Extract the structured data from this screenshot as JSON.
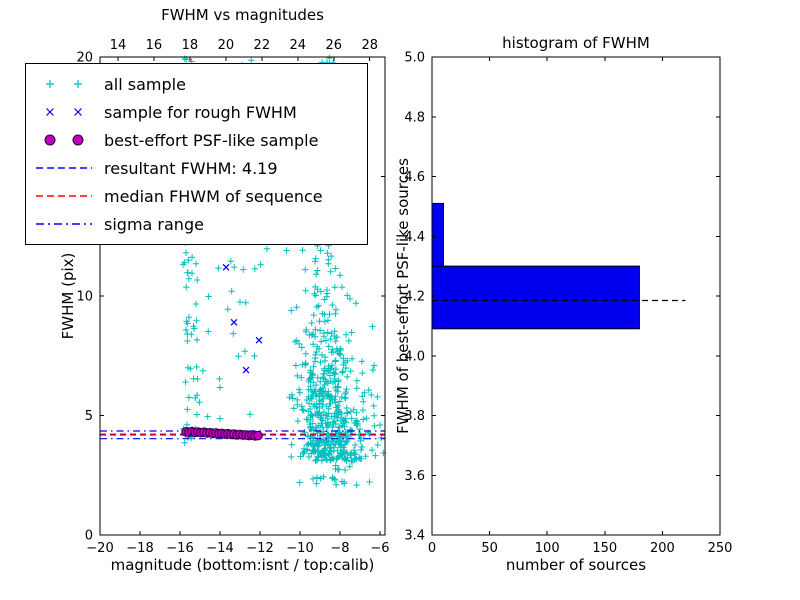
{
  "figure": {
    "background": "#ffffff"
  },
  "chart_data": [
    {
      "type": "scatter",
      "title": "FWHM vs magnitudes",
      "xlabel": "magnitude (bottom:isnt / top:calib)",
      "ylabel": "FWHM (pix)",
      "xlim": [
        -20,
        -5.75
      ],
      "ylim": [
        0,
        20
      ],
      "xticks": {
        "values": [
          -20,
          -18,
          -16,
          -14,
          -12,
          -10,
          -8,
          -6
        ],
        "labels": [
          "−20",
          "−18",
          "−16",
          "−14",
          "−12",
          "−10",
          "−8",
          "−6"
        ]
      },
      "yticks": {
        "values": [
          0,
          5,
          10,
          15,
          20
        ],
        "labels": [
          "0",
          "5",
          "10",
          "15",
          "20"
        ]
      },
      "top_axis": {
        "lim": [
          13.0,
          28.85
        ],
        "values": [
          14,
          16,
          18,
          20,
          22,
          24,
          26,
          28
        ],
        "labels": [
          "14",
          "16",
          "18",
          "20",
          "22",
          "24",
          "26",
          "28"
        ]
      },
      "series": [
        {
          "name": "all sample",
          "marker": "plus",
          "color": "#00bfbf",
          "seed": 42,
          "clusters": [
            {
              "n": 80,
              "x": [
                -15.85,
                -15.1
              ],
              "y": [
                3.6,
                20.0
              ]
            },
            {
              "n": 45,
              "x": [
                -15.1,
                -11.6
              ],
              "y": [
                4.2,
                20.0
              ]
            },
            {
              "n": 15,
              "x": [
                -13.0,
                -12.3
              ],
              "y": [
                14.0,
                20.0
              ]
            },
            {
              "n": 430,
              "xg": [
                -8.6,
                0.85
              ],
              "yh": [
                3.1,
                2.4
              ]
            },
            {
              "n": 160,
              "xg": [
                -8.9,
                0.7
              ],
              "y": [
                6.0,
                20.0
              ]
            },
            {
              "n": 45,
              "xg": [
                -8.4,
                0.9
              ],
              "y": [
                2.0,
                4.2
              ]
            },
            {
              "n": 18,
              "x": [
                -7.3,
                -5.9
              ],
              "y": [
                2.6,
                7.0
              ]
            }
          ]
        },
        {
          "name": "sample for rough FWHM",
          "marker": "x",
          "color": "#0000ff",
          "points": [
            [
              -13.3,
              8.9
            ],
            [
              -12.05,
              8.15
            ],
            [
              -12.7,
              6.9
            ],
            [
              -13.7,
              11.2
            ],
            [
              -14.8,
              4.32
            ],
            [
              -13.5,
              4.24
            ],
            [
              -12.3,
              4.2
            ],
            [
              -15.2,
              4.3
            ]
          ]
        },
        {
          "name": "best-effort PSF-like sample",
          "marker": "circle",
          "fill": "#bf00bf",
          "edge": "#30003a",
          "points": [
            [
              -15.7,
              4.32
            ],
            [
              -15.55,
              4.3
            ],
            [
              -15.4,
              4.33
            ],
            [
              -15.25,
              4.29
            ],
            [
              -15.1,
              4.31
            ],
            [
              -14.95,
              4.28
            ],
            [
              -14.8,
              4.3
            ],
            [
              -14.65,
              4.27
            ],
            [
              -14.5,
              4.28
            ],
            [
              -14.35,
              4.25
            ],
            [
              -14.2,
              4.27
            ],
            [
              -14.05,
              4.24
            ],
            [
              -13.9,
              4.25
            ],
            [
              -13.75,
              4.22
            ],
            [
              -13.6,
              4.24
            ],
            [
              -13.45,
              4.21
            ],
            [
              -13.3,
              4.22
            ],
            [
              -13.15,
              4.19
            ],
            [
              -13.0,
              4.21
            ],
            [
              -12.85,
              4.18
            ],
            [
              -12.7,
              4.19
            ],
            [
              -12.55,
              4.16
            ],
            [
              -12.4,
              4.18
            ],
            [
              -12.25,
              4.15
            ],
            [
              -12.1,
              4.16
            ]
          ]
        }
      ],
      "lines": [
        {
          "label": "resultant FWHM: 4.19",
          "y": 4.19,
          "color": "#0000ff",
          "style": "dashed"
        },
        {
          "label": "median FHWM of sequence",
          "y": 4.22,
          "color": "#ff0000",
          "style": "dashed"
        },
        {
          "label": "sigma range",
          "y": [
            4.35,
            4.03
          ],
          "color": "#0000ff",
          "style": "dashdot"
        }
      ],
      "legend": {
        "items": [
          {
            "marker": "plus",
            "color": "#00bfbf",
            "label": "all sample"
          },
          {
            "marker": "x",
            "color": "#0000ff",
            "label": "sample for rough FWHM"
          },
          {
            "marker": "circle",
            "fill": "#bf00bf",
            "edge": "#30003a",
            "label": "best-effort PSF-like sample"
          },
          {
            "marker": "dashed-line",
            "color": "#0000ff",
            "label": "resultant FWHM: 4.19"
          },
          {
            "marker": "dashed-line",
            "color": "#ff0000",
            "label": "median FHWM of sequence"
          },
          {
            "marker": "dashdot-line",
            "color": "#0000ff",
            "label": "sigma range"
          }
        ]
      }
    },
    {
      "type": "bar",
      "orientation": "horizontal",
      "title": "histogram of FWHM",
      "xlabel": "number of sources",
      "ylabel": "FWHM of best-effort PSF-like sources",
      "xlim": [
        0,
        250
      ],
      "ylim": [
        3.4,
        5.0
      ],
      "xticks": {
        "values": [
          0,
          50,
          100,
          150,
          200,
          250
        ],
        "labels": [
          "0",
          "50",
          "100",
          "150",
          "200",
          "250"
        ]
      },
      "yticks": {
        "values": [
          3.4,
          3.6,
          3.8,
          4.0,
          4.2,
          4.4,
          4.6,
          4.8,
          5.0
        ],
        "labels": [
          "3.4",
          "3.6",
          "3.8",
          "4.0",
          "4.2",
          "4.4",
          "4.6",
          "4.8",
          "5.0"
        ]
      },
      "bars": [
        {
          "y_from": 4.09,
          "y_to": 4.3,
          "count": 180
        },
        {
          "y_from": 4.3,
          "y_to": 4.51,
          "count": 10
        }
      ],
      "bar_fill": "#0000ee",
      "bar_edge": "#000000",
      "dashed_line": {
        "y": 4.185,
        "x_to": 220,
        "color": "#000000",
        "style": "dashed"
      }
    }
  ]
}
